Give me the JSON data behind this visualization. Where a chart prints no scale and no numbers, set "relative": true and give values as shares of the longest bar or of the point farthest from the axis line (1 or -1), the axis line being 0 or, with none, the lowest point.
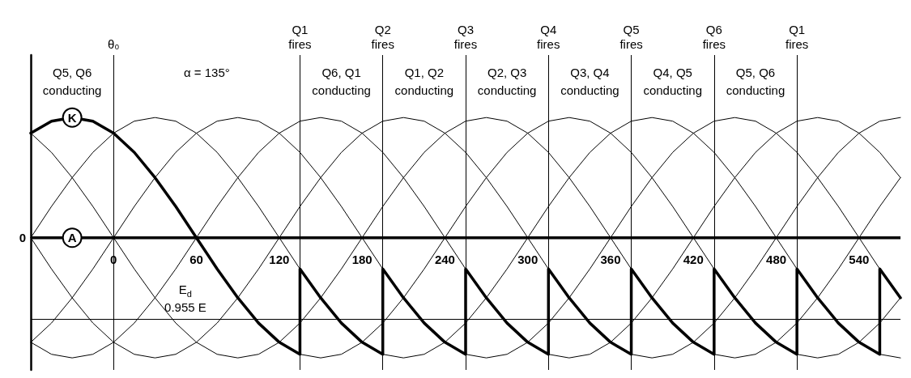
{
  "chart_data": {
    "type": "line",
    "relative": true,
    "x": [
      -60,
      -45,
      -30,
      -15,
      0,
      15,
      30,
      45,
      60,
      75,
      90,
      105,
      120,
      135,
      150,
      165,
      180,
      195,
      210,
      225,
      240,
      255,
      270,
      285,
      300,
      315,
      330,
      345,
      360,
      375,
      390,
      405,
      420,
      435,
      450,
      465,
      480,
      495,
      510,
      525,
      540,
      555,
      570
    ],
    "series": [
      {
        "color": "#000000",
        "values": [
          0.87,
          0.97,
          1,
          0.97,
          0.87,
          0.71,
          0.5,
          0.26,
          0,
          -0.26,
          -0.5,
          -0.71,
          -0.87,
          -0.97,
          -1,
          -0.97,
          -0.87,
          -0.71,
          -0.5,
          -0.26,
          0,
          0.26,
          0.5,
          0.71,
          0.87,
          0.97,
          1,
          0.97,
          0.87,
          0.71,
          0.5,
          0.26,
          0,
          -0.26,
          -0.5,
          -0.71,
          -0.87,
          -0.97,
          -1,
          -0.97,
          -0.87,
          -0.71,
          -0.5
        ]
      },
      {
        "color": "#000000",
        "values": [
          0,
          0.26,
          0.5,
          0.71,
          0.87,
          0.97,
          1,
          0.97,
          0.87,
          0.71,
          0.5,
          0.26,
          0,
          -0.26,
          -0.5,
          -0.71,
          -0.87,
          -0.97,
          -1,
          -0.97,
          -0.87,
          -0.71,
          -0.5,
          -0.26,
          0,
          0.26,
          0.5,
          0.71,
          0.87,
          0.97,
          1,
          0.97,
          0.87,
          0.71,
          0.5,
          0.26,
          0,
          -0.26,
          -0.5,
          -0.71,
          -0.87,
          -0.97,
          -1
        ]
      },
      {
        "color": "#000000",
        "values": [
          -0.87,
          -0.71,
          -0.5,
          -0.26,
          0,
          0.26,
          0.5,
          0.71,
          0.87,
          0.97,
          1,
          0.97,
          0.87,
          0.71,
          0.5,
          0.26,
          0,
          -0.26,
          -0.5,
          -0.71,
          -0.87,
          -0.97,
          -1,
          -0.97,
          -0.87,
          -0.71,
          -0.5,
          -0.26,
          0,
          0.26,
          0.5,
          0.71,
          0.87,
          0.97,
          1,
          0.97,
          0.87,
          0.71,
          0.5,
          0.26,
          0,
          -0.26,
          -0.5
        ]
      },
      {
        "color": "#000000",
        "values": [
          -0.87,
          -0.97,
          -1,
          -0.97,
          -0.87,
          -0.71,
          -0.5,
          -0.26,
          0,
          0.26,
          0.5,
          0.71,
          0.87,
          0.97,
          1,
          0.97,
          0.87,
          0.71,
          0.5,
          0.26,
          0,
          -0.26,
          -0.5,
          -0.71,
          -0.87,
          -0.97,
          -1,
          -0.97,
          -0.87,
          -0.71,
          -0.5,
          -0.26,
          0,
          0.26,
          0.5,
          0.71,
          0.87,
          0.97,
          1,
          0.97,
          0.87,
          0.71,
          0.5
        ]
      },
      {
        "color": "#000000",
        "values": [
          0,
          -0.26,
          -0.5,
          -0.71,
          -0.87,
          -0.97,
          -1,
          -0.97,
          -0.87,
          -0.71,
          -0.5,
          -0.26,
          0,
          0.26,
          0.5,
          0.71,
          0.87,
          0.97,
          1,
          0.97,
          0.87,
          0.71,
          0.5,
          0.26,
          0,
          -0.26,
          -0.5,
          -0.71,
          -0.87,
          -0.97,
          -1,
          -0.97,
          -0.87,
          -0.71,
          -0.5,
          -0.26,
          0,
          0.26,
          0.5,
          0.71,
          0.87,
          0.97,
          1
        ]
      },
      {
        "color": "#000000",
        "values": [
          0.87,
          0.71,
          0.5,
          0.26,
          0,
          -0.26,
          -0.5,
          -0.71,
          -0.87,
          -0.97,
          -1,
          -0.97,
          -0.87,
          -0.71,
          -0.5,
          -0.26,
          0,
          0.26,
          0.5,
          0.71,
          0.87,
          0.97,
          1,
          0.97,
          0.87,
          0.71,
          0.5,
          0.26,
          0,
          -0.26,
          -0.5,
          -0.71,
          -0.87,
          -0.97,
          -1,
          -0.97,
          -0.87,
          -0.71,
          -0.5,
          -0.26,
          0,
          0.26,
          0.5
        ]
      },
      {
        "name": "K",
        "color": "#000000",
        "x": [
          -60,
          -45,
          -30,
          -15,
          0,
          15,
          30,
          45,
          60,
          75,
          90,
          105,
          120,
          135,
          135,
          150,
          165,
          180,
          195,
          195,
          210,
          225,
          240,
          255,
          255,
          270,
          285,
          300,
          315,
          315,
          330,
          345,
          360,
          375,
          375,
          390,
          405,
          420,
          435,
          435,
          450,
          465,
          480,
          495,
          495,
          510,
          525,
          540,
          555,
          555,
          570
        ],
        "values": [
          0.87,
          0.97,
          1,
          0.97,
          0.87,
          0.71,
          0.5,
          0.26,
          0,
          -0.26,
          -0.5,
          -0.71,
          -0.87,
          -0.97,
          -0.26,
          -0.5,
          -0.71,
          -0.87,
          -0.97,
          -0.26,
          -0.5,
          -0.71,
          -0.87,
          -0.97,
          -0.26,
          -0.5,
          -0.71,
          -0.87,
          -0.97,
          -0.26,
          -0.5,
          -0.71,
          -0.87,
          -0.97,
          -0.26,
          -0.5,
          -0.71,
          -0.87,
          -0.97,
          -0.26,
          -0.5,
          -0.71,
          -0.87,
          -0.97,
          -0.26,
          -0.5,
          -0.71,
          -0.87,
          -0.97,
          -0.26,
          -0.5
        ]
      }
    ],
    "xlim": [
      -60,
      570
    ],
    "xticks": [
      0,
      60,
      120,
      180,
      240,
      300,
      360,
      420,
      480,
      540
    ],
    "ref_lines": [
      {
        "axis": "x",
        "value": 0,
        "label": "θ₀"
      },
      {
        "axis": "x",
        "value": 135,
        "label": "Q1\nfires"
      },
      {
        "axis": "x",
        "value": 195,
        "label": "Q2\nfires"
      },
      {
        "axis": "x",
        "value": 255,
        "label": "Q3\nfires"
      },
      {
        "axis": "x",
        "value": 315,
        "label": "Q4\nfires"
      },
      {
        "axis": "x",
        "value": 375,
        "label": "Q5\nfires"
      },
      {
        "axis": "x",
        "value": 435,
        "label": "Q6\nfires"
      },
      {
        "axis": "x",
        "value": 495,
        "label": "Q1\nfires"
      },
      {
        "axis": "y",
        "value": -0.68,
        "label": null
      }
    ],
    "annotations": [
      "Q5, Q6\nconducting",
      "α = 135°",
      "Q6, Q1\nconducting",
      "Q1, Q2\nconducting",
      "Q2, Q3\nconducting",
      "Q3, Q4\nconducting",
      "Q4, Q5\nconducting",
      "Q5, Q6\nconducting",
      {
        "text": "0",
        "x": -60,
        "y": 0
      },
      {
        "text": "A",
        "x": -30,
        "y": 0
      },
      {
        "text": "E$_{d}$\n0.955 E",
        "x": 52,
        "y": -0.68
      }
    ],
    "legend": false,
    "marker": "none",
    "line_style": "solid",
    "grid": false
  }
}
